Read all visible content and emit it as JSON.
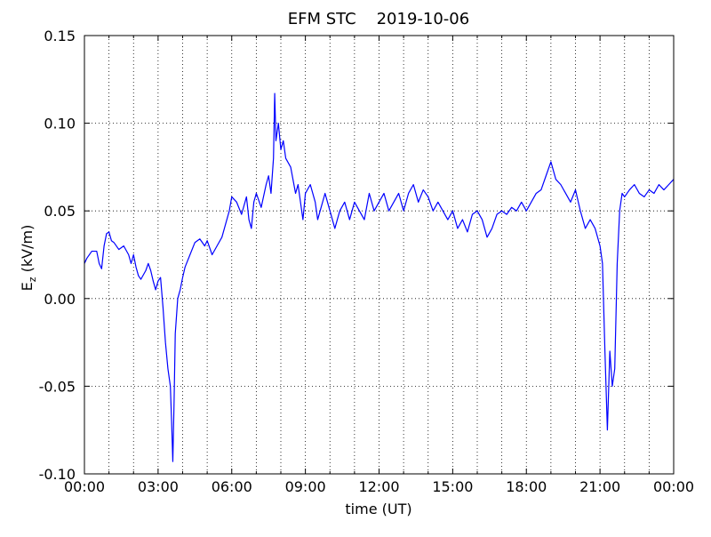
{
  "chart_data": {
    "type": "line",
    "title": "EFM STC    2019-10-06",
    "xlabel": "time (UT)",
    "ylabel_parts": [
      "E",
      "z",
      " (kV/m)"
    ],
    "xlim": [
      0,
      24
    ],
    "ylim": [
      -0.1,
      0.15
    ],
    "xticks": [
      {
        "value": 0,
        "label": "00:00"
      },
      {
        "value": 3,
        "label": "03:00"
      },
      {
        "value": 6,
        "label": "06:00"
      },
      {
        "value": 9,
        "label": "09:00"
      },
      {
        "value": 12,
        "label": "12:00"
      },
      {
        "value": 15,
        "label": "15:00"
      },
      {
        "value": 18,
        "label": "18:00"
      },
      {
        "value": 21,
        "label": "21:00"
      },
      {
        "value": 24,
        "label": "00:00"
      }
    ],
    "xminorticks": [
      1,
      2,
      4,
      5,
      7,
      8,
      10,
      11,
      13,
      14,
      16,
      17,
      19,
      20,
      22,
      23
    ],
    "yticks": [
      {
        "value": -0.1,
        "label": "-0.10"
      },
      -0.05,
      {
        "value": 0,
        "label": "0.00"
      },
      0.05,
      {
        "value": 0.1,
        "label": "0.10"
      },
      0.15
    ],
    "grid": true,
    "series": [
      {
        "color": "#0000ff",
        "x": [
          0,
          0.1,
          0.3,
          0.5,
          0.6,
          0.7,
          0.8,
          0.9,
          1.0,
          1.1,
          1.2,
          1.4,
          1.6,
          1.8,
          1.9,
          2.0,
          2.1,
          2.2,
          2.3,
          2.5,
          2.6,
          2.7,
          2.8,
          2.9,
          3.0,
          3.1,
          3.2,
          3.3,
          3.4,
          3.5,
          3.55,
          3.6,
          3.65,
          3.7,
          3.8,
          3.9,
          4.0,
          4.1,
          4.3,
          4.5,
          4.7,
          4.9,
          5.0,
          5.2,
          5.4,
          5.6,
          5.8,
          5.9,
          6.0,
          6.2,
          6.4,
          6.6,
          6.7,
          6.8,
          6.9,
          7.0,
          7.2,
          7.4,
          7.5,
          7.6,
          7.7,
          7.75,
          7.8,
          7.9,
          8.0,
          8.1,
          8.2,
          8.4,
          8.6,
          8.7,
          8.8,
          8.9,
          9.0,
          9.2,
          9.4,
          9.5,
          9.6,
          9.8,
          10.0,
          10.2,
          10.4,
          10.6,
          10.8,
          11.0,
          11.2,
          11.4,
          11.6,
          11.8,
          12.0,
          12.2,
          12.4,
          12.6,
          12.8,
          13.0,
          13.2,
          13.4,
          13.6,
          13.8,
          14.0,
          14.2,
          14.4,
          14.6,
          14.8,
          15.0,
          15.2,
          15.4,
          15.6,
          15.8,
          16.0,
          16.2,
          16.4,
          16.6,
          16.8,
          17.0,
          17.2,
          17.4,
          17.6,
          17.8,
          18.0,
          18.2,
          18.4,
          18.6,
          18.8,
          19.0,
          19.2,
          19.4,
          19.6,
          19.8,
          20.0,
          20.2,
          20.4,
          20.6,
          20.8,
          21.0,
          21.1,
          21.2,
          21.3,
          21.4,
          21.5,
          21.6,
          21.7,
          21.8,
          21.9,
          22.0,
          22.2,
          22.4,
          22.6,
          22.8,
          23.0,
          23.2,
          23.4,
          23.6,
          23.8,
          24.0
        ],
        "values": [
          0.02,
          0.023,
          0.027,
          0.027,
          0.02,
          0.017,
          0.03,
          0.037,
          0.038,
          0.033,
          0.032,
          0.028,
          0.03,
          0.025,
          0.02,
          0.025,
          0.018,
          0.013,
          0.011,
          0.016,
          0.02,
          0.016,
          0.01,
          0.005,
          0.01,
          0.012,
          -0.005,
          -0.025,
          -0.04,
          -0.05,
          -0.07,
          -0.093,
          -0.06,
          -0.02,
          0.0,
          0.005,
          0.012,
          0.018,
          0.025,
          0.032,
          0.034,
          0.03,
          0.033,
          0.025,
          0.03,
          0.035,
          0.045,
          0.05,
          0.058,
          0.055,
          0.048,
          0.058,
          0.045,
          0.04,
          0.055,
          0.06,
          0.052,
          0.065,
          0.07,
          0.06,
          0.08,
          0.117,
          0.09,
          0.1,
          0.085,
          0.09,
          0.08,
          0.075,
          0.06,
          0.065,
          0.055,
          0.045,
          0.06,
          0.065,
          0.055,
          0.045,
          0.05,
          0.06,
          0.05,
          0.04,
          0.05,
          0.055,
          0.045,
          0.055,
          0.05,
          0.045,
          0.06,
          0.05,
          0.055,
          0.06,
          0.05,
          0.055,
          0.06,
          0.05,
          0.06,
          0.065,
          0.055,
          0.062,
          0.058,
          0.05,
          0.055,
          0.05,
          0.045,
          0.05,
          0.04,
          0.045,
          0.038,
          0.048,
          0.05,
          0.045,
          0.035,
          0.04,
          0.048,
          0.05,
          0.048,
          0.052,
          0.05,
          0.055,
          0.05,
          0.055,
          0.06,
          0.062,
          0.07,
          0.078,
          0.068,
          0.065,
          0.06,
          0.055,
          0.062,
          0.05,
          0.04,
          0.045,
          0.04,
          0.03,
          0.02,
          -0.03,
          -0.075,
          -0.03,
          -0.05,
          -0.04,
          0.02,
          0.05,
          0.06,
          0.058,
          0.062,
          0.065,
          0.06,
          0.058,
          0.062,
          0.06,
          0.065,
          0.062,
          0.065,
          0.068
        ]
      }
    ]
  }
}
